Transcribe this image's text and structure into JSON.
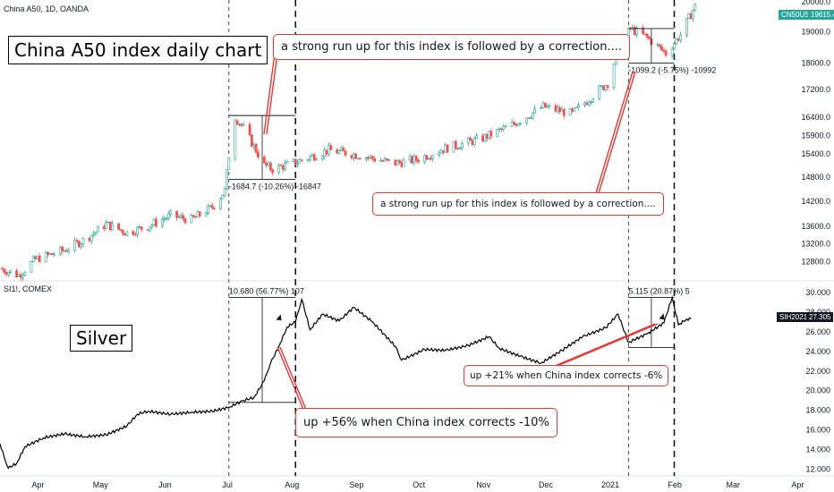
{
  "top_symbol": "China A50, 1D, OANDA",
  "bottom_symbol": "SI1!, COMEX",
  "title_china": "China A50 index daily chart",
  "title_silver": "Silver",
  "callout_top": "a strong run up for this index is followed by a correction....",
  "callout_mid": "a strong run up for this index is followed by a correction....",
  "callout_silver_big": "up +56% when China index corrects -10%",
  "callout_silver_small": "up +21% when China index corrects -6%",
  "measure_labels": {
    "china_jul": "-1684.7 (-10.26%) -16847",
    "china_jan": "-1099.2 (-5.75%) -10992",
    "silver_jul": "10.680 (56.77%) 107",
    "silver_jan": "5.115 (20.87%) 5"
  },
  "price_tags": {
    "china_symbol": "CN50USD",
    "china_value": "19615.4",
    "silver_symbol": "SIH2021",
    "silver_value": "27.305"
  },
  "colors": {
    "up": "#26a69a",
    "down": "#ef5350",
    "candle_up_fill": "#ffffff",
    "china_tag": "#26a69a",
    "silver_tag": "#131722",
    "callout_border": "#e53935"
  },
  "chart_data": [
    {
      "type": "candlestick",
      "title": "China A50 index daily chart",
      "symbol": "China A50, 1D, OANDA",
      "y_axis_ticks": [
        "20000.0",
        "19000.0",
        "18000.0",
        "17200.0",
        "16400.0",
        "15900.0",
        "15400.0",
        "14800.0",
        "14200.0",
        "13600.0",
        "13200.0",
        "12800.0"
      ],
      "y_scale": "log",
      "y_range": [
        12400,
        20000
      ],
      "x_tick_labels": [
        "Apr",
        "May",
        "Jun",
        "Jul",
        "Aug",
        "Sep",
        "Oct",
        "Nov",
        "Dec",
        "2021",
        "Feb",
        "Mar",
        "Apr"
      ],
      "x_range": [
        "2020-03-15",
        "2021-04-06"
      ],
      "close_path": [
        [
          "2020-03-15",
          12650
        ],
        [
          "2020-03-24",
          12500
        ],
        [
          "2020-04-01",
          12850
        ],
        [
          "2020-04-15",
          13050
        ],
        [
          "2020-04-25",
          13300
        ],
        [
          "2020-05-05",
          13650
        ],
        [
          "2020-05-15",
          13450
        ],
        [
          "2020-05-25",
          13600
        ],
        [
          "2020-06-05",
          13850
        ],
        [
          "2020-06-15",
          13750
        ],
        [
          "2020-06-25",
          14050
        ],
        [
          "2020-07-01",
          14450
        ],
        [
          "2020-07-03",
          15350
        ],
        [
          "2020-07-06",
          16400
        ],
        [
          "2020-07-10",
          16100
        ],
        [
          "2020-07-15",
          15600
        ],
        [
          "2020-07-20",
          15100
        ],
        [
          "2020-07-24",
          15000
        ],
        [
          "2020-08-05",
          15200
        ],
        [
          "2020-08-20",
          15500
        ],
        [
          "2020-09-05",
          15350
        ],
        [
          "2020-09-20",
          15150
        ],
        [
          "2020-10-01",
          15250
        ],
        [
          "2020-10-15",
          15550
        ],
        [
          "2020-11-01",
          15800
        ],
        [
          "2020-11-15",
          16150
        ],
        [
          "2020-12-01",
          16700
        ],
        [
          "2020-12-15",
          16500
        ],
        [
          "2021-01-01",
          17400
        ],
        [
          "2021-01-06",
          18400
        ],
        [
          "2021-01-12",
          19100
        ],
        [
          "2021-01-20",
          18800
        ],
        [
          "2021-01-29",
          18300
        ],
        [
          "2021-02-05",
          18900
        ],
        [
          "2021-02-12",
          19850
        ]
      ],
      "measurements": [
        {
          "label": "-1684.7 (-10.26%) -16847",
          "from": "2020-07-03",
          "to": "2020-08-04",
          "high": 16450,
          "low": 14740
        },
        {
          "label": "-1099.2 (-5.75%) -10992",
          "from": "2021-01-11",
          "to": "2021-02-02",
          "high": 19100,
          "low": 18000
        }
      ],
      "last_price": "19615.4"
    },
    {
      "type": "line",
      "title": "Silver",
      "symbol": "SI1!, COMEX",
      "y_axis_ticks": [
        "30.000",
        "28.000",
        "26.000",
        "24.000",
        "22.000",
        "20.000",
        "18.000",
        "16.000",
        "14.000",
        "12.000"
      ],
      "y_range": [
        11.5,
        31
      ],
      "x_tick_labels": [
        "Apr",
        "May",
        "Jun",
        "Jul",
        "Aug",
        "Sep",
        "Oct",
        "Nov",
        "Dec",
        "2021",
        "Feb",
        "Mar",
        "Apr"
      ],
      "points": [
        [
          "2020-03-15",
          14.6
        ],
        [
          "2020-03-17",
          13.2
        ],
        [
          "2020-03-19",
          12.1
        ],
        [
          "2020-03-23",
          12.6
        ],
        [
          "2020-03-27",
          14.3
        ],
        [
          "2020-04-05",
          15.2
        ],
        [
          "2020-04-15",
          15.6
        ],
        [
          "2020-04-25",
          15.3
        ],
        [
          "2020-05-05",
          15.5
        ],
        [
          "2020-05-15",
          16.4
        ],
        [
          "2020-05-20",
          17.6
        ],
        [
          "2020-05-25",
          17.9
        ],
        [
          "2020-06-05",
          17.6
        ],
        [
          "2020-06-15",
          17.8
        ],
        [
          "2020-06-25",
          17.9
        ],
        [
          "2020-07-03",
          18.3
        ],
        [
          "2020-07-10",
          19.0
        ],
        [
          "2020-07-15",
          19.3
        ],
        [
          "2020-07-20",
          21.0
        ],
        [
          "2020-07-23",
          22.8
        ],
        [
          "2020-07-27",
          24.5
        ],
        [
          "2020-07-31",
          26.5
        ],
        [
          "2020-08-04",
          27.0
        ],
        [
          "2020-08-07",
          29.3
        ],
        [
          "2020-08-11",
          26.2
        ],
        [
          "2020-08-17",
          27.8
        ],
        [
          "2020-08-25",
          27.1
        ],
        [
          "2020-09-01",
          28.5
        ],
        [
          "2020-09-10",
          27.0
        ],
        [
          "2020-09-21",
          24.5
        ],
        [
          "2020-09-24",
          23.1
        ],
        [
          "2020-10-05",
          24.2
        ],
        [
          "2020-10-15",
          24.1
        ],
        [
          "2020-10-26",
          24.6
        ],
        [
          "2020-11-05",
          25.5
        ],
        [
          "2020-11-10",
          24.3
        ],
        [
          "2020-11-20",
          23.5
        ],
        [
          "2020-11-30",
          22.8
        ],
        [
          "2020-12-10",
          24.1
        ],
        [
          "2020-12-20",
          25.5
        ],
        [
          "2020-12-31",
          26.4
        ],
        [
          "2021-01-06",
          27.8
        ],
        [
          "2021-01-11",
          24.9
        ],
        [
          "2021-01-20",
          25.8
        ],
        [
          "2021-01-28",
          26.9
        ],
        [
          "2021-02-01",
          29.5
        ],
        [
          "2021-02-04",
          26.7
        ],
        [
          "2021-02-08",
          27.3
        ],
        [
          "2021-02-10",
          27.3
        ]
      ],
      "measurements": [
        {
          "label": "10.680 (56.77%) 107",
          "from": "2020-07-03",
          "to": "2020-08-04",
          "high": 29.5,
          "low": 18.81
        },
        {
          "label": "5.115 (20.87%) 5",
          "from": "2021-01-11",
          "to": "2021-02-02",
          "high": 29.5,
          "low": 24.4
        }
      ],
      "last_price": "27.305"
    }
  ]
}
